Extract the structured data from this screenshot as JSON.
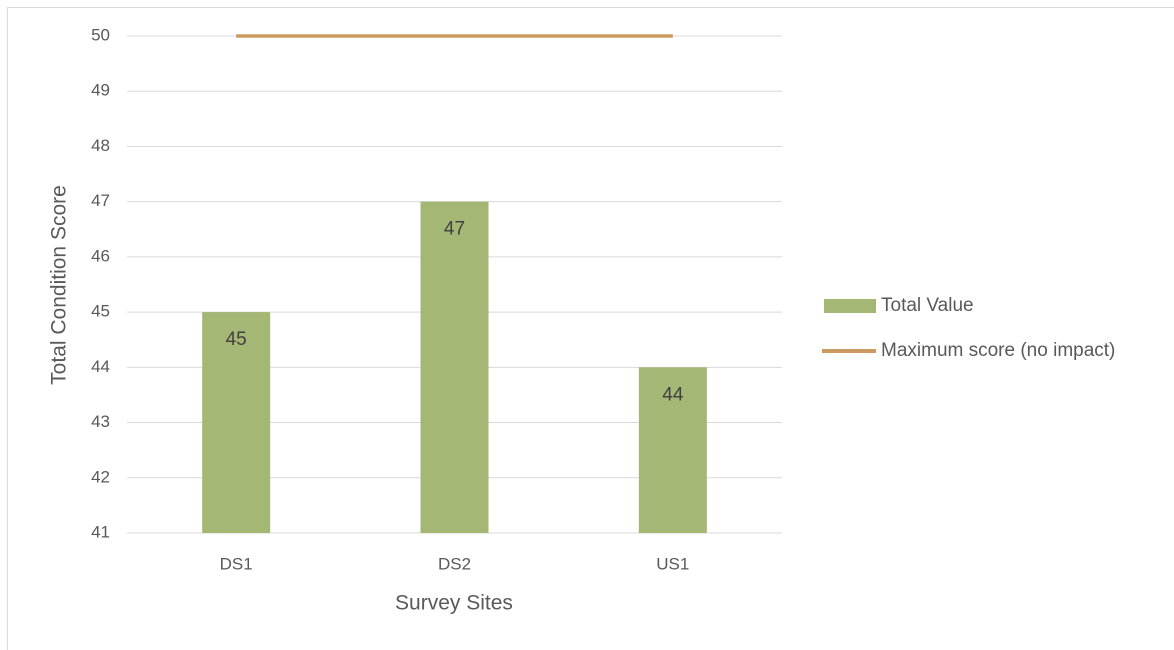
{
  "chart_data": {
    "type": "bar",
    "x_label": "Survey Sites",
    "y_label": "Total Condition Score",
    "categories": [
      "DS1",
      "DS2",
      "US1"
    ],
    "series": [
      {
        "name": "Total Value",
        "type": "bar",
        "color": "#a5b774",
        "values": [
          45,
          47,
          44
        ]
      },
      {
        "name": "Maximum score (no impact)",
        "type": "line",
        "color": "#cc9a5f",
        "values": [
          50,
          50,
          50
        ]
      }
    ],
    "ylim": [
      41,
      50
    ],
    "yticks": [
      41,
      42,
      43,
      44,
      45,
      46,
      47,
      48,
      49,
      50
    ],
    "grid": true,
    "legend": "right"
  }
}
